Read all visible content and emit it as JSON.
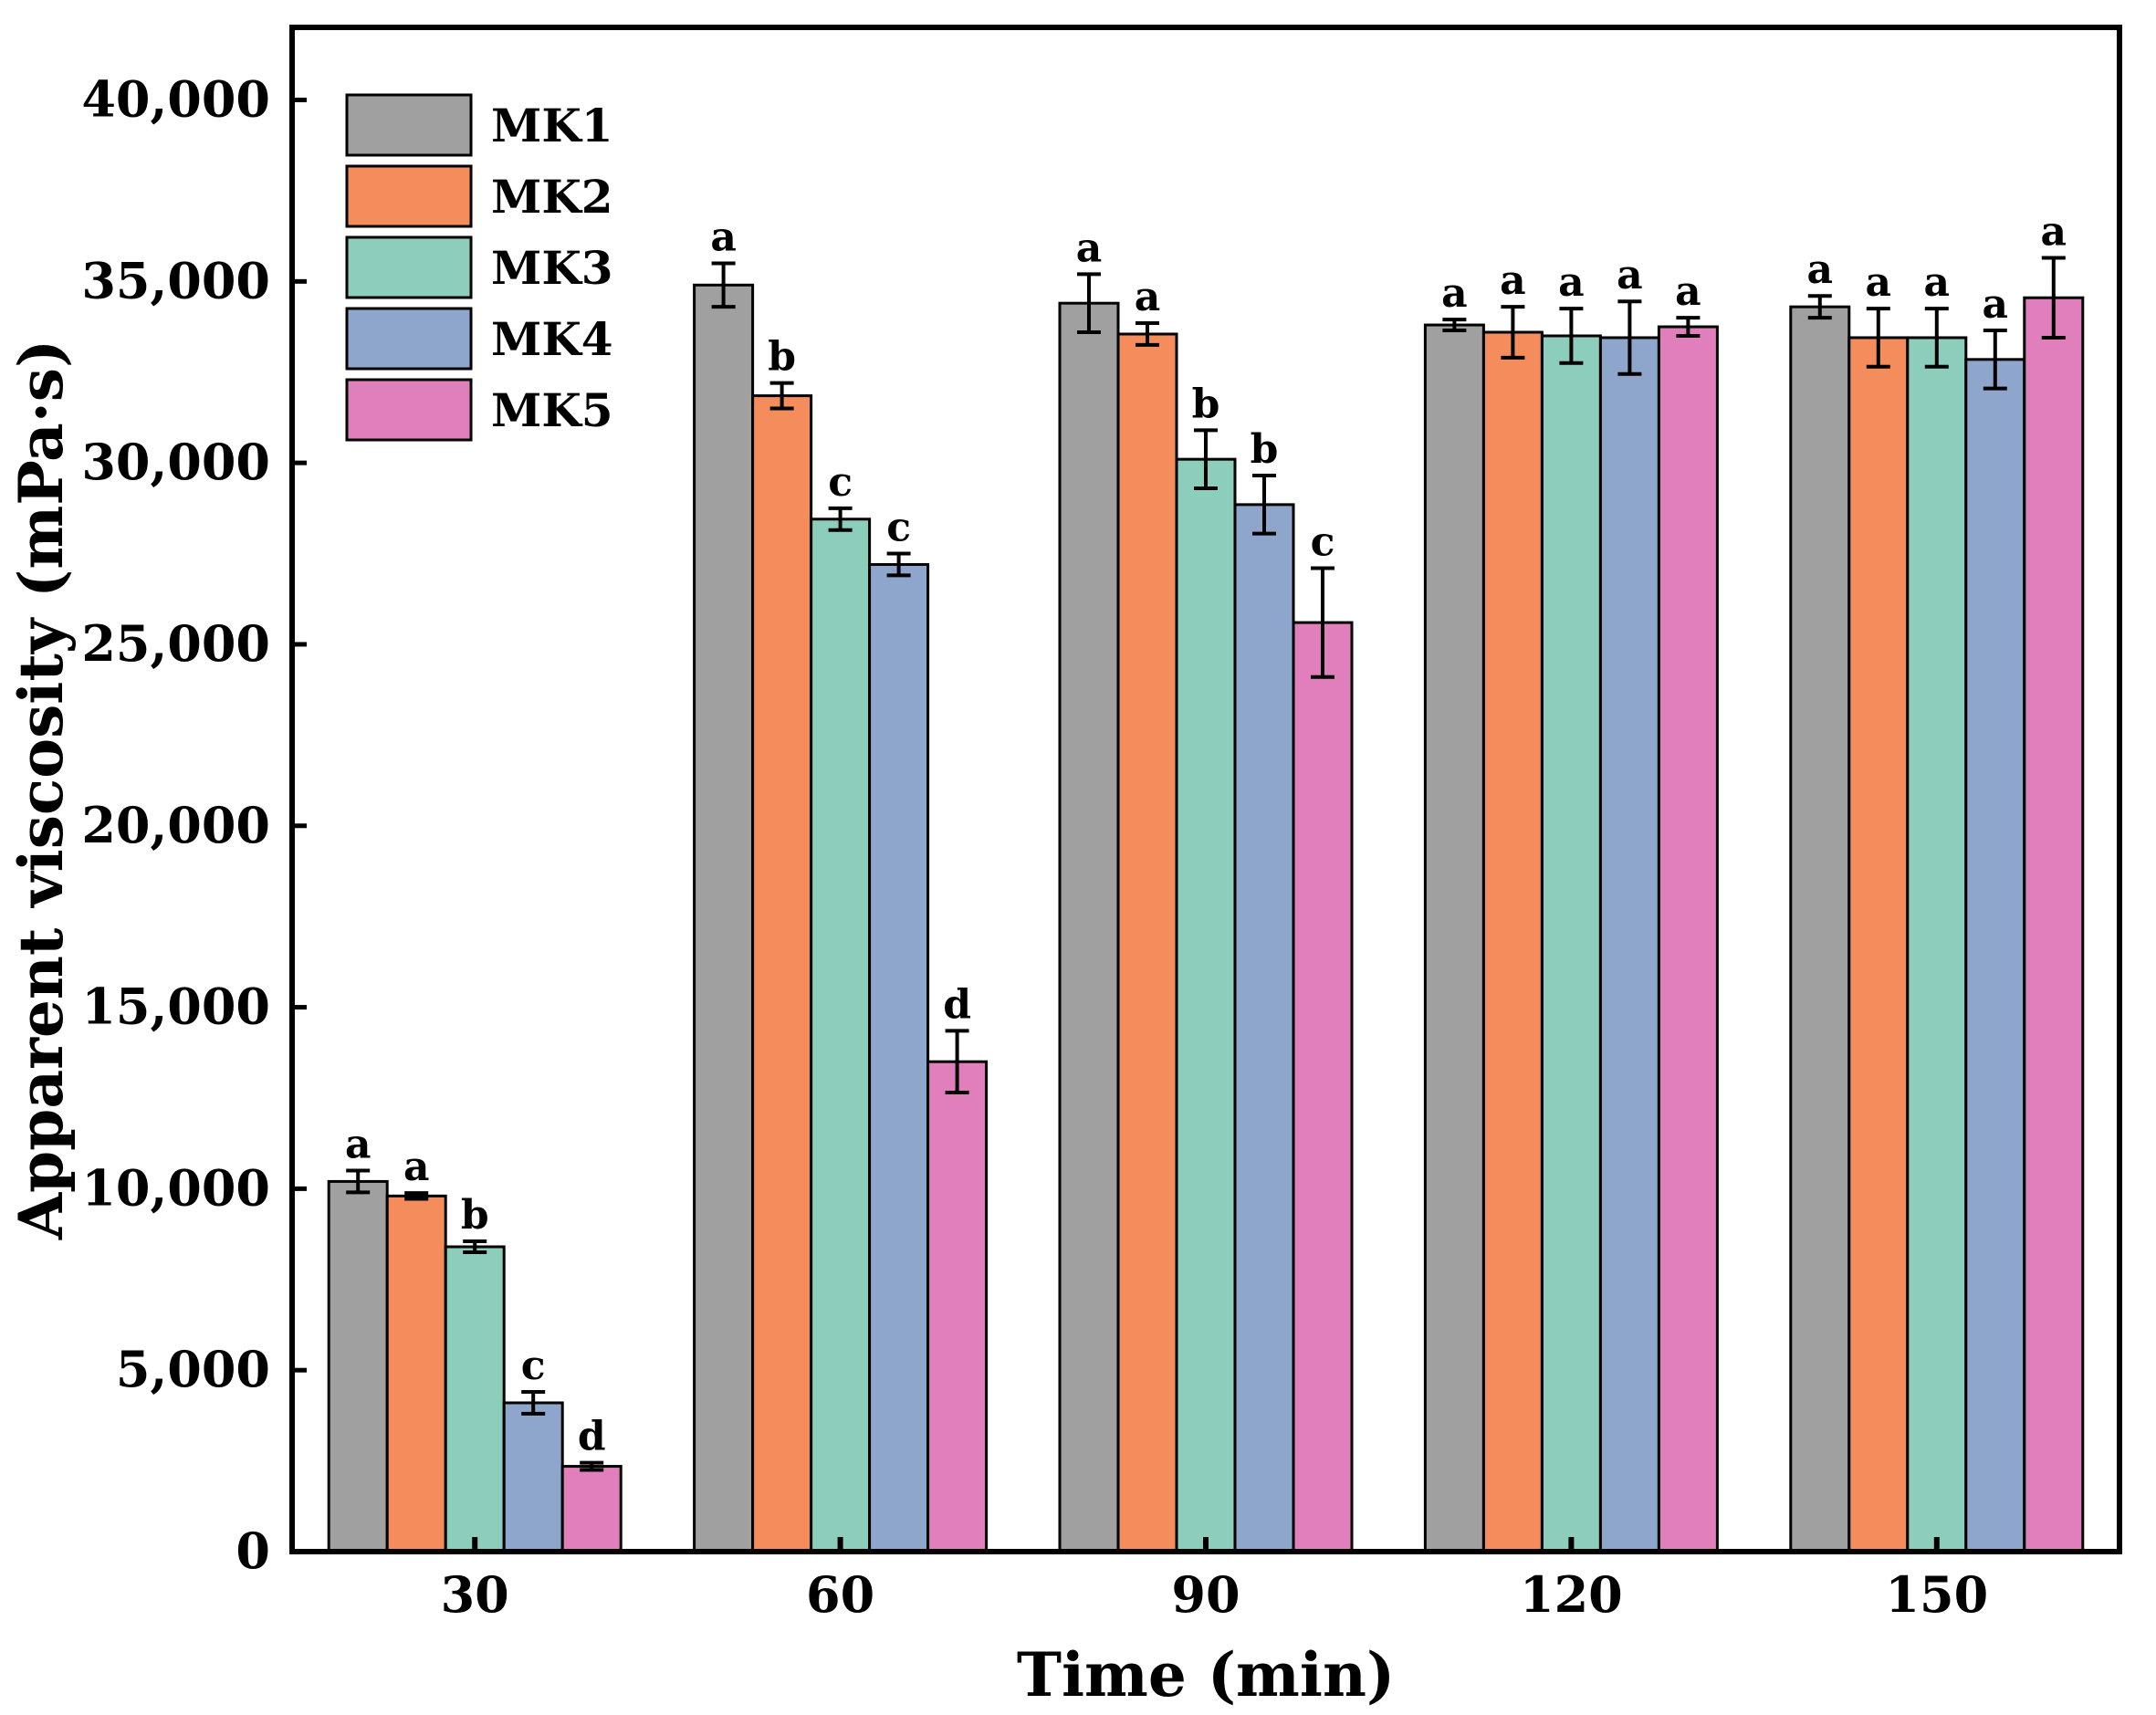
{
  "chart_data": {
    "type": "bar",
    "xlabel": "Time (min)",
    "ylabel": "Apparent viscosity (mPa·s)",
    "categories": [
      "30",
      "60",
      "90",
      "120",
      "150"
    ],
    "ylim": [
      0,
      42000
    ],
    "yticks": [
      0,
      5000,
      10000,
      15000,
      20000,
      25000,
      30000,
      35000,
      40000
    ],
    "ytick_labels": [
      "0",
      "5,000",
      "10,000",
      "15,000",
      "20,000",
      "25,000",
      "30,000",
      "35,000",
      "40,000"
    ],
    "legend_position": "top-left",
    "grid": false,
    "series": [
      {
        "name": "MK1",
        "color": "#a0a0a0",
        "values": [
          10200,
          34900,
          34400,
          33800,
          34300
        ],
        "errors": [
          300,
          600,
          800,
          150,
          300
        ],
        "labels": [
          "a",
          "a",
          "a",
          "a",
          "a"
        ]
      },
      {
        "name": "MK2",
        "color": "#f48c5c",
        "values": [
          9800,
          31850,
          33550,
          33600,
          33450
        ],
        "errors": [
          80,
          350,
          300,
          700,
          800
        ],
        "labels": [
          "a",
          "b",
          "a",
          "a",
          "a"
        ]
      },
      {
        "name": "MK3",
        "color": "#8ccdbb",
        "values": [
          8400,
          28450,
          30100,
          33500,
          33450
        ],
        "errors": [
          150,
          300,
          800,
          750,
          800
        ],
        "labels": [
          "b",
          "c",
          "b",
          "a",
          "a"
        ]
      },
      {
        "name": "MK4",
        "color": "#8ea6cc",
        "values": [
          4100,
          27200,
          28850,
          33450,
          32850
        ],
        "errors": [
          300,
          300,
          800,
          1000,
          800
        ],
        "labels": [
          "c",
          "c",
          "b",
          "a",
          "a"
        ]
      },
      {
        "name": "MK5",
        "color": "#e07fbb",
        "values": [
          2350,
          13500,
          25600,
          33750,
          34550
        ],
        "errors": [
          100,
          850,
          1500,
          250,
          1100
        ],
        "labels": [
          "d",
          "d",
          "c",
          "a",
          "a"
        ]
      }
    ]
  }
}
